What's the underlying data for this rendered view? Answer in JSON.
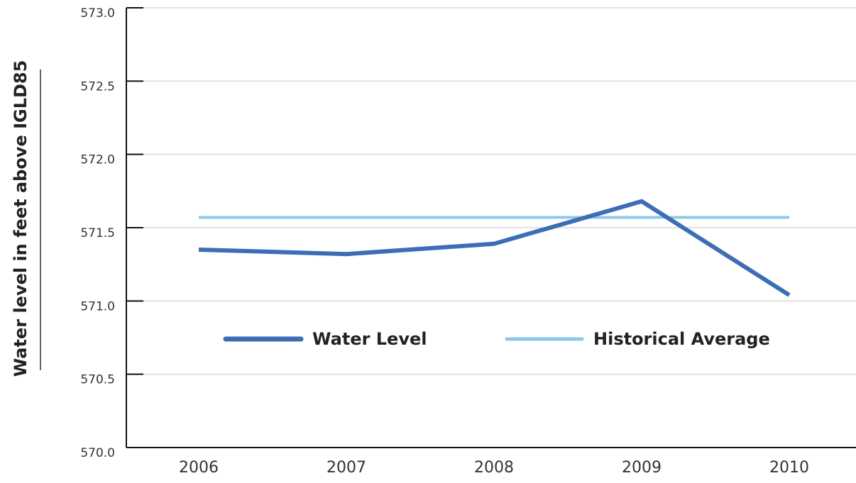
{
  "chart_data": {
    "type": "line",
    "y_label": "Water level in feet above IGLD85",
    "categories": [
      "2006",
      "2007",
      "2008",
      "2009",
      "2010"
    ],
    "series": [
      {
        "name": "Water Level",
        "color": "#3d6db5",
        "values": [
          571.35,
          571.32,
          571.39,
          571.68,
          571.04
        ]
      },
      {
        "name": "Historical Average",
        "color": "#90c8ec",
        "values": [
          571.57,
          571.57,
          571.57,
          571.57,
          571.57
        ]
      }
    ],
    "ylim": [
      570,
      573
    ],
    "yticks": [
      {
        "value": 570,
        "label": "570.0"
      },
      570.5,
      {
        "value": 571,
        "label": "571.0"
      },
      571.5,
      {
        "value": 572,
        "label": "572.0"
      },
      572.5,
      {
        "value": 573,
        "label": "573.0"
      }
    ],
    "grid": true
  }
}
